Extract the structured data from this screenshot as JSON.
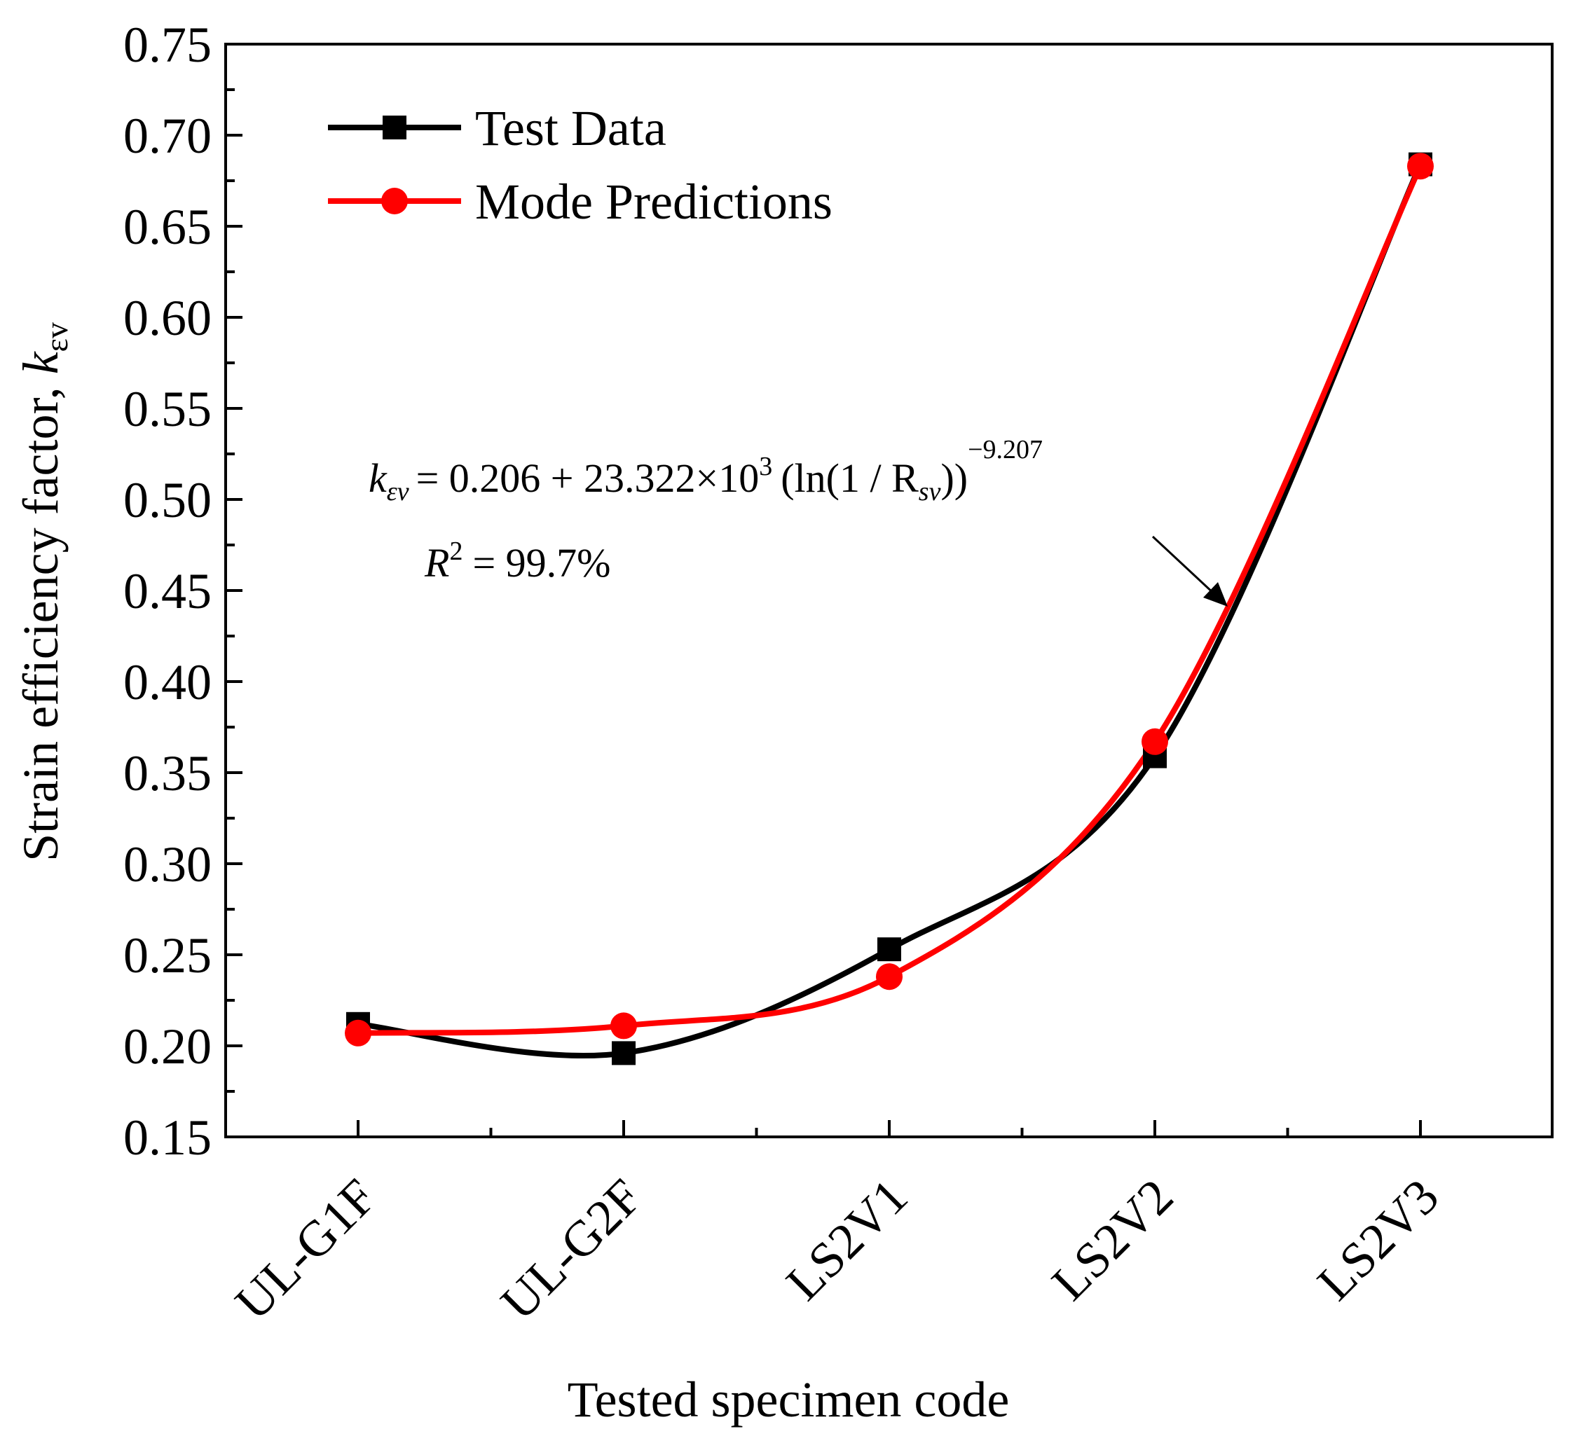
{
  "chart_data": {
    "type": "line",
    "categories": [
      "UL-G1F",
      "UL-G2F",
      "LS2V1",
      "LS2V2",
      "LS2V3"
    ],
    "series": [
      {
        "name": "Test Data",
        "values": [
          0.212,
          0.196,
          0.253,
          0.359,
          0.684
        ],
        "color": "#000000",
        "marker": "square"
      },
      {
        "name": "Mode Predictions",
        "values": [
          0.207,
          0.211,
          0.238,
          0.367,
          0.683
        ],
        "color": "#ff0000",
        "marker": "circle"
      }
    ],
    "xlabel": "Tested specimen code",
    "ylabel": "Strain efficiency factor, ",
    "ylabel_symbol": "k",
    "ylabel_subscript": "εv",
    "ylim": [
      0.15,
      0.75
    ],
    "yticks": [
      "0.15",
      "0.20",
      "0.25",
      "0.30",
      "0.35",
      "0.40",
      "0.45",
      "0.50",
      "0.55",
      "0.60",
      "0.65",
      "0.70",
      "0.75"
    ],
    "legend": "top-left",
    "grid": false,
    "annotation": {
      "k": "k",
      "k_sub": "εv",
      "eq_mid": "= 0.206 + 23.322×10",
      "exp3": "3",
      "paren": "(ln(1 / R",
      "r_sub": "sv",
      "close": "))",
      "exponent": "−9.207",
      "r2_symbol": "R",
      "r2_exp": "2",
      "r2_value": "= 99.7%"
    }
  }
}
